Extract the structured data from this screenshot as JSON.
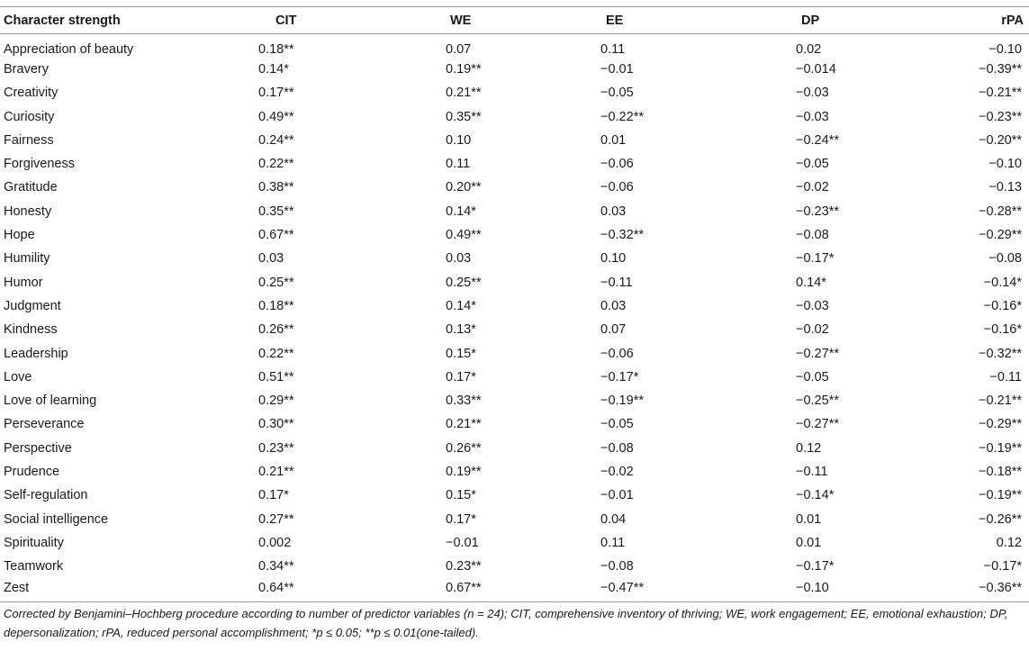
{
  "headers": [
    "Character strength",
    "CIT",
    "WE",
    "EE",
    "DP",
    "rPA"
  ],
  "rows": [
    [
      "Appreciation of beauty",
      "0.18**",
      "0.07",
      "0.11",
      "0.02",
      "−0.10"
    ],
    [
      "Bravery",
      "0.14*",
      "0.19**",
      "−0.01",
      "−0.014",
      "−0.39**"
    ],
    [
      "Creativity",
      "0.17**",
      "0.21**",
      "−0.05",
      "−0.03",
      "−0.21**"
    ],
    [
      "Curiosity",
      "0.49**",
      "0.35**",
      "−0.22**",
      "−0.03",
      "−0.23**"
    ],
    [
      "Fairness",
      "0.24**",
      "0.10",
      "0.01",
      "−0.24**",
      "−0.20**"
    ],
    [
      "Forgiveness",
      "0.22**",
      "0.11",
      "−0.06",
      "−0.05",
      "−0.10"
    ],
    [
      "Gratitude",
      "0.38**",
      "0.20**",
      "−0.06",
      "−0.02",
      "−0.13"
    ],
    [
      "Honesty",
      "0.35**",
      "0.14*",
      "0.03",
      "−0.23**",
      "−0.28**"
    ],
    [
      "Hope",
      "0.67**",
      "0.49**",
      "−0.32**",
      "−0.08",
      "−0.29**"
    ],
    [
      "Humility",
      "0.03",
      "0.03",
      "0.10",
      "−0.17*",
      "−0.08"
    ],
    [
      "Humor",
      "0.25**",
      "0.25**",
      "−0.11",
      "0.14*",
      "−0.14*"
    ],
    [
      "Judgment",
      "0.18**",
      "0.14*",
      "0.03",
      "−0.03",
      "−0.16*"
    ],
    [
      "Kindness",
      "0.26**",
      "0.13*",
      "0.07",
      "−0.02",
      "−0.16*"
    ],
    [
      "Leadership",
      "0.22**",
      "0.15*",
      "−0.06",
      "−0.27**",
      "−0.32**"
    ],
    [
      "Love",
      "0.51**",
      "0.17*",
      "−0.17*",
      "−0.05",
      "−0.11"
    ],
    [
      "Love of learning",
      "0.29**",
      "0.33**",
      "−0.19**",
      "−0.25**",
      "−0.21**"
    ],
    [
      "Perseverance",
      "0.30**",
      "0.21**",
      "−0.05",
      "−0.27**",
      "−0.29**"
    ],
    [
      "Perspective",
      "0.23**",
      "0.26**",
      "−0.08",
      "0.12",
      "−0.19**"
    ],
    [
      "Prudence",
      "0.21**",
      "0.19**",
      "−0.02",
      "−0.11",
      "−0.18**"
    ],
    [
      "Self-regulation",
      "0.17*",
      "0.15*",
      "−0.01",
      "−0.14*",
      "−0.19**"
    ],
    [
      "Social intelligence",
      "0.27**",
      "0.17*",
      "0.04",
      "0.01",
      "−0.26**"
    ],
    [
      "Spirituality",
      "0.002",
      "−0.01",
      "0.11",
      "0.01",
      "0.12"
    ],
    [
      "Teamwork",
      "0.34**",
      "0.23**",
      "−0.08",
      "−0.17*",
      "−0.17*"
    ],
    [
      "Zest",
      "0.64**",
      "0.67**",
      "−0.47**",
      "−0.10",
      "−0.36**"
    ]
  ],
  "note": "Corrected by Benjamini–Hochberg procedure according to number of predictor variables (n = 24); CIT, comprehensive inventory of thriving; WE, work engagement; EE, emotional exhaustion; DP, depersonalization; rPA, reduced personal accomplishment; *p ≤ 0.05; **p ≤ 0.01(one-tailed)."
}
